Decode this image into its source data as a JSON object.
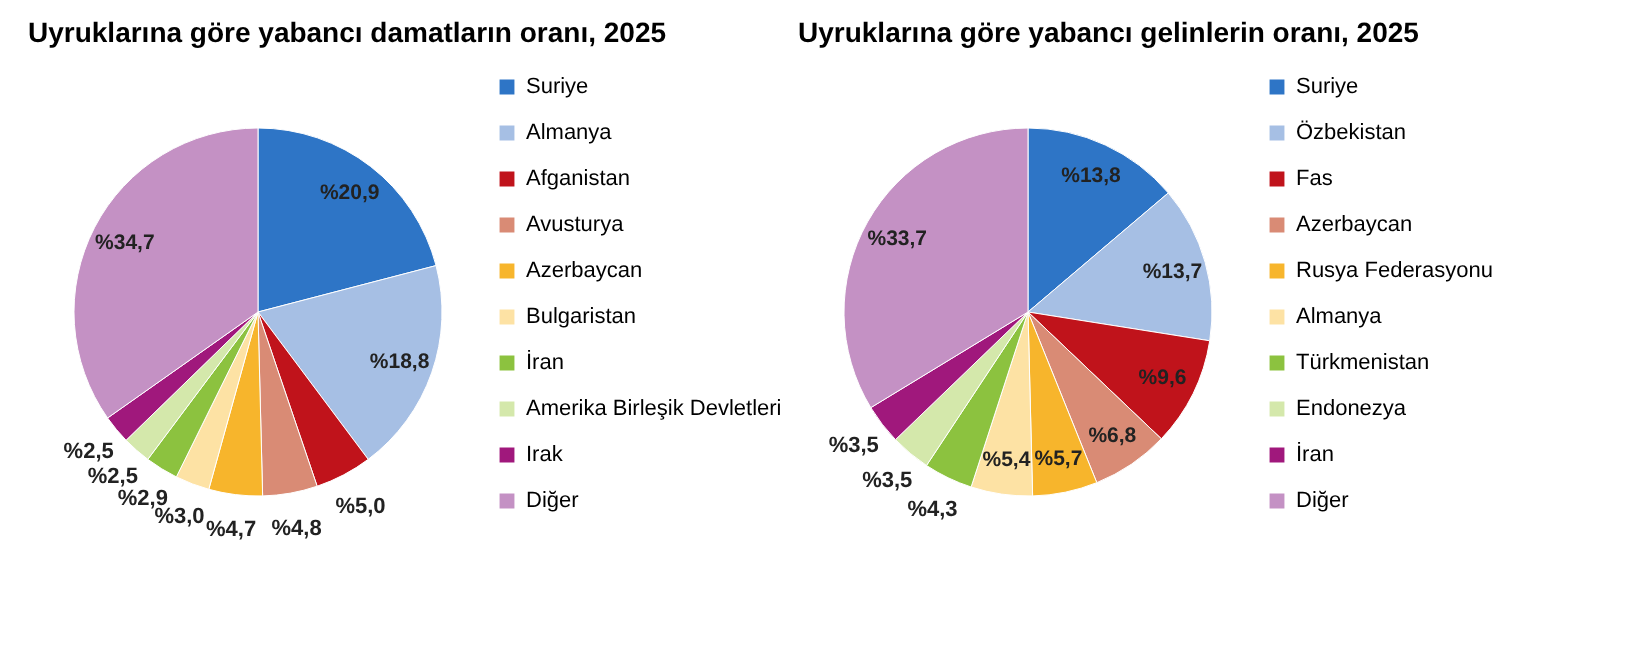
{
  "chart_data": [
    {
      "type": "pie",
      "title": "Uyruklarına göre yabancı damatların oranı, 2025",
      "legend": "right",
      "categories": [
        "Suriye",
        "Almanya",
        "Afganistan",
        "Avusturya",
        "Azerbaycan",
        "Bulgaristan",
        "İran",
        "Amerika Birleşik Devletleri",
        "Irak",
        "Diğer"
      ],
      "values": [
        20.9,
        18.8,
        5.0,
        4.8,
        4.7,
        3.0,
        2.9,
        2.5,
        2.5,
        34.7
      ],
      "value_labels": [
        "%20,9",
        "%18,8",
        "%5,0",
        "%4,8",
        "%4,7",
        "%3,0",
        "%2,9",
        "%2,5",
        "%2,5",
        "%34,7"
      ],
      "colors": [
        "#2e75c6",
        "#a6bfe4",
        "#c0131b",
        "#d98b75",
        "#f7b52c",
        "#fde2a4",
        "#8cc23f",
        "#d4e8ab",
        "#a0187c",
        "#c491c4"
      ]
    },
    {
      "type": "pie",
      "title": "Uyruklarına göre yabancı gelinlerin oranı, 2025",
      "legend": "right",
      "categories": [
        "Suriye",
        "Özbekistan",
        "Fas",
        "Azerbaycan",
        "Rusya Federasyonu",
        "Almanya",
        "Türkmenistan",
        "Endonezya",
        "İran",
        "Diğer"
      ],
      "values": [
        13.8,
        13.7,
        9.6,
        6.8,
        5.7,
        5.4,
        4.3,
        3.5,
        3.5,
        33.7
      ],
      "value_labels": [
        "%13,8",
        "%13,7",
        "%9,6",
        "%6,8",
        "%5,7",
        "%5,4",
        "%4,3",
        "%3,5",
        "%3,5",
        "%33,7"
      ],
      "colors": [
        "#2e75c6",
        "#a6bfe4",
        "#c0131b",
        "#d98b75",
        "#f7b52c",
        "#fde2a4",
        "#8cc23f",
        "#d4e8ab",
        "#a0187c",
        "#c491c4"
      ]
    }
  ]
}
